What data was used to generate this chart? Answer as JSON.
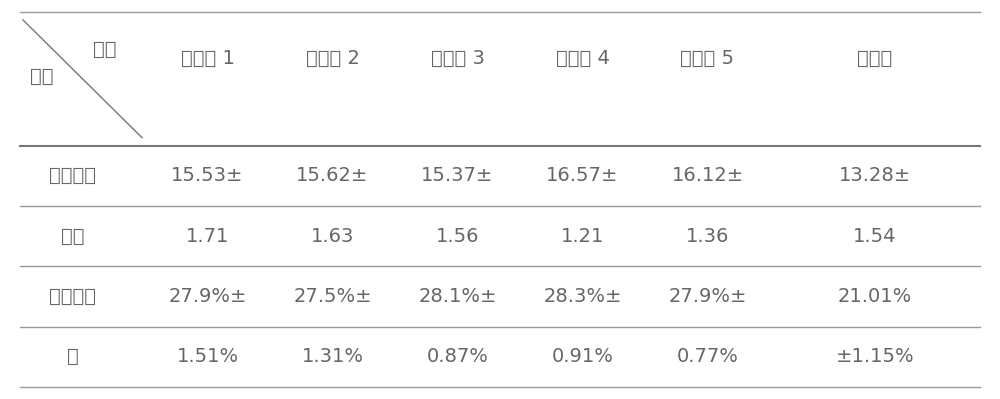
{
  "col_header": [
    "组别",
    "注入组 1",
    "注入组 2",
    "注入组 3",
    "注入组 4",
    "注入组 5",
    "对照组"
  ],
  "row_header_diag_top": "组别",
  "row_header_diag_bot": "成分",
  "rows": [
    [
      "毛状根生",
      "15.53±",
      "15.62±",
      "15.37±",
      "16.57±",
      "16.12±",
      "13.28±"
    ],
    [
      "物量",
      "1.71",
      "1.63",
      "1.56",
      "1.21",
      "1.36",
      "1.54"
    ],
    [
      "黄芩苷含",
      "27.9%±",
      "27.5%±",
      "28.1%±",
      "28.3%±",
      "27.9%±",
      "21.01%"
    ],
    [
      "量",
      "1.51%",
      "1.31%",
      "0.87%",
      "0.91%",
      "0.77%",
      "±1.15%"
    ]
  ],
  "bg_color": "#ffffff",
  "text_color": "#666666",
  "border_color": "#999999",
  "thick_border_color": "#777777",
  "font_size": 14,
  "header_font_size": 14
}
